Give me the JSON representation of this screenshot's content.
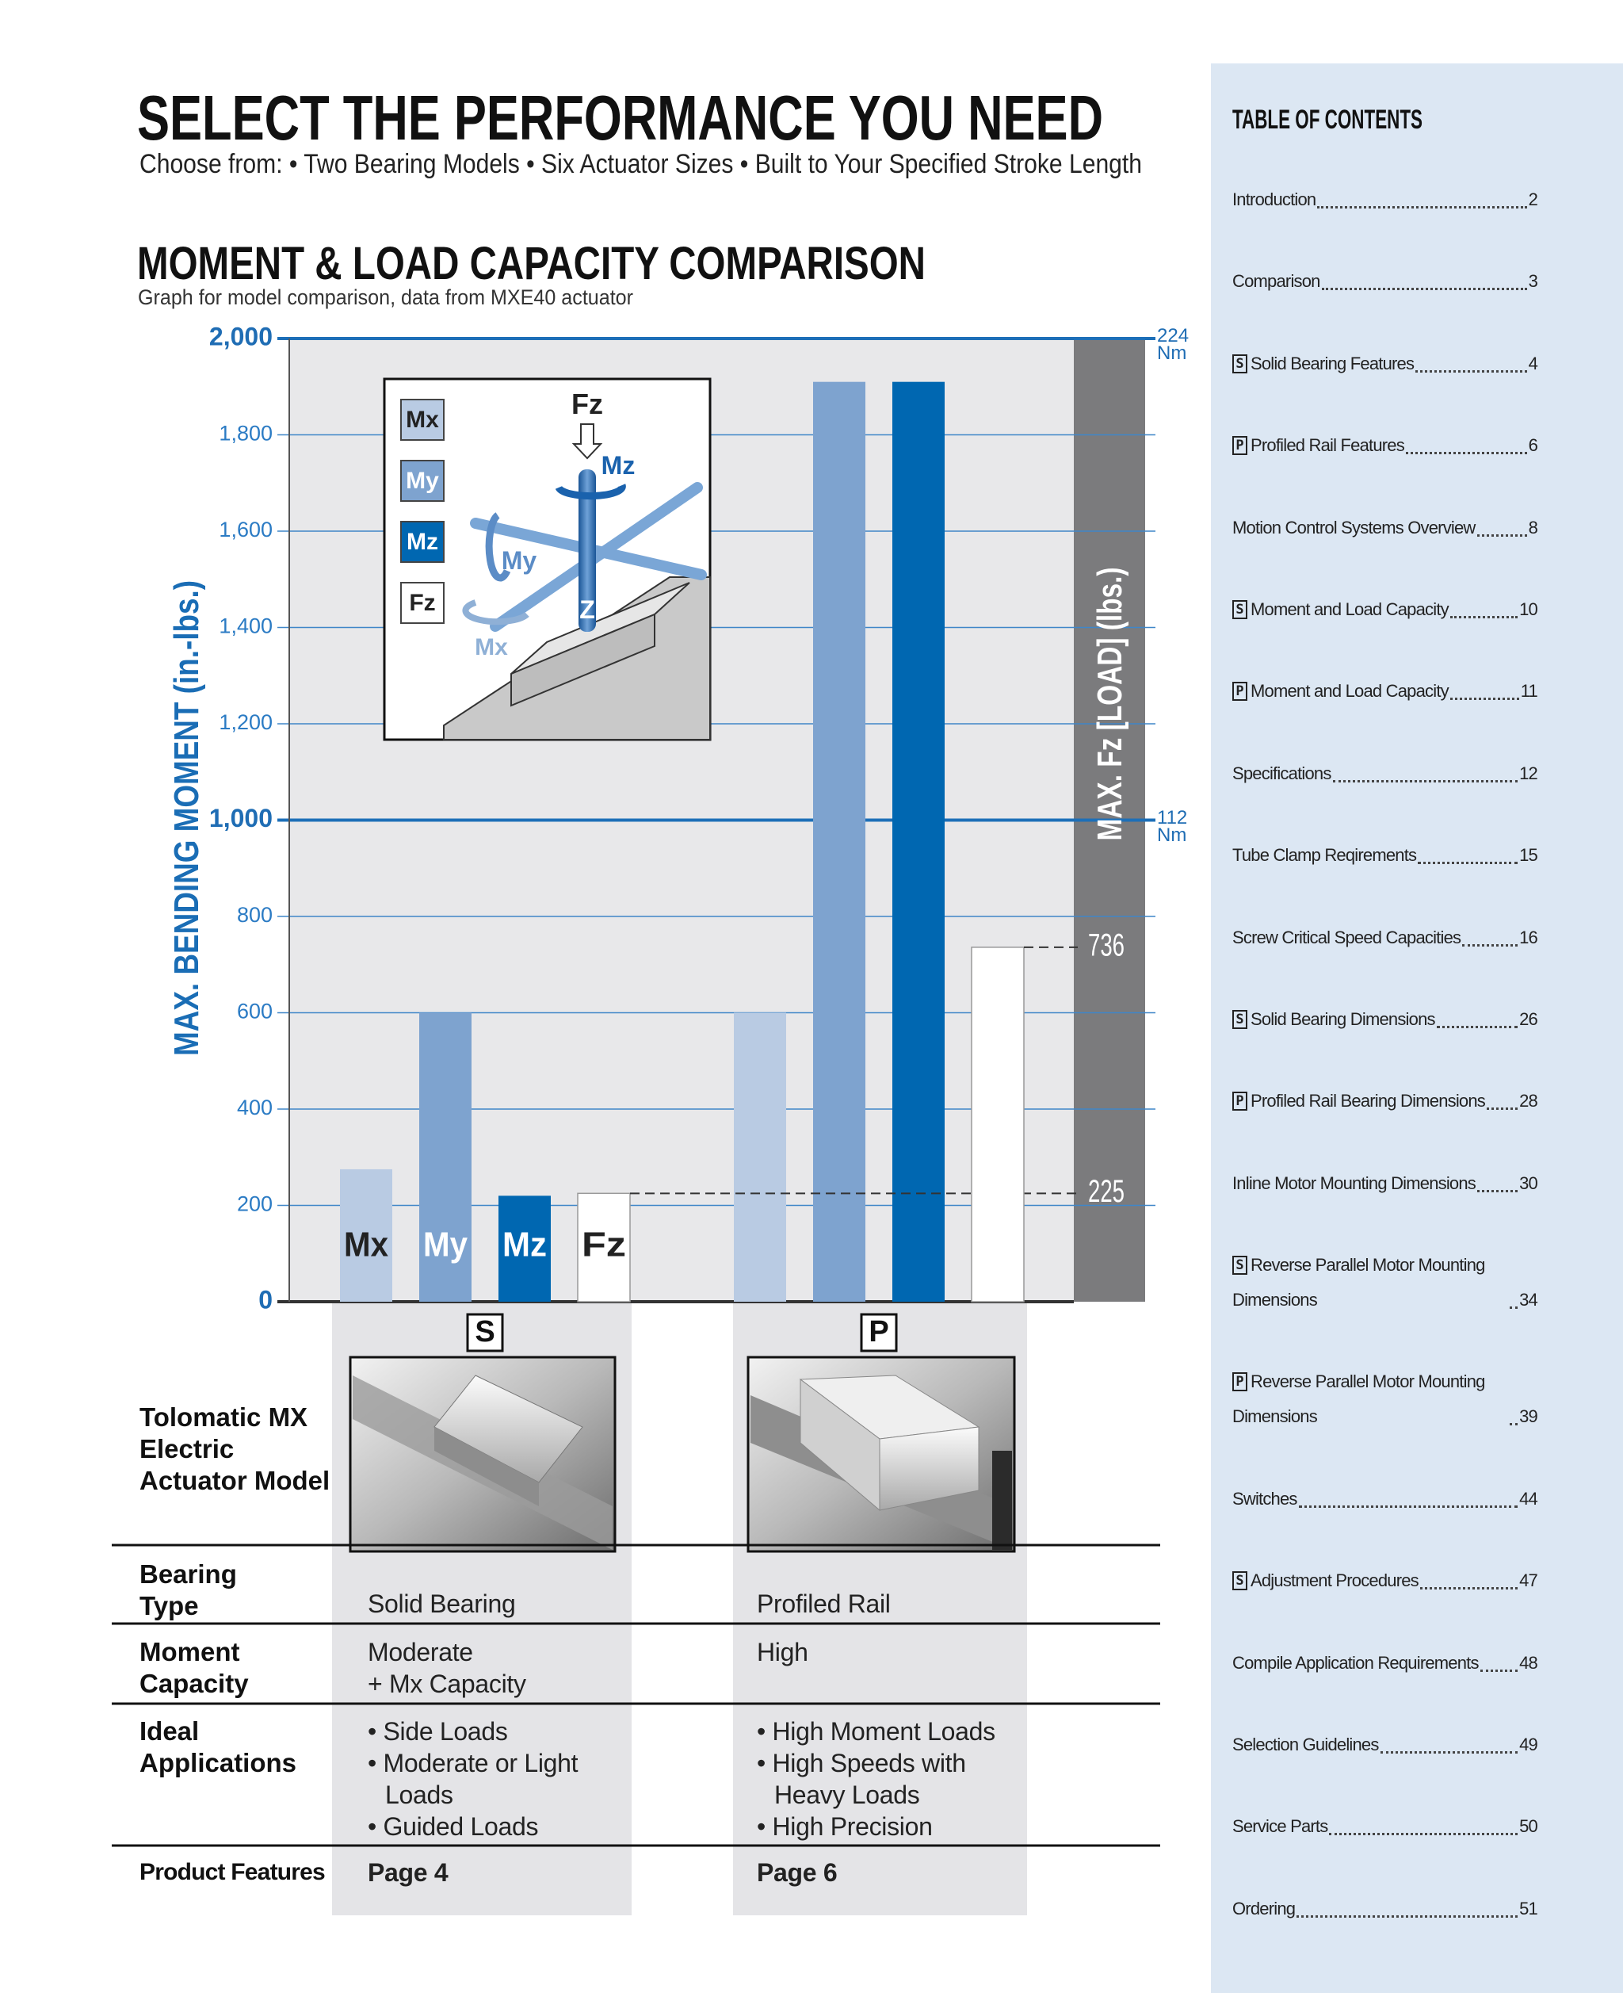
{
  "header": {
    "title": "SELECT THE PERFORMANCE YOU NEED",
    "subtitle": "Choose from: • Two Bearing Models  • Six Actuator Sizes • Built to Your Specified Stroke Length"
  },
  "chart_data": {
    "type": "bar",
    "title": "MOMENT & LOAD CAPACITY COMPARISON",
    "subtitle": "Graph for model comparison, data from MXE40 actuator",
    "ylabel": "MAX. BENDING MOMENT (in.-lbs.)",
    "band_label": "MAX. Fz [LOAD] (lbs.)",
    "categories": [
      "S",
      "P"
    ],
    "series": [
      {
        "name": "Mx",
        "color": "#b9cbe3",
        "values": [
          275,
          600
        ]
      },
      {
        "name": "My",
        "color": "#7ea3cf",
        "values": [
          600,
          1910
        ]
      },
      {
        "name": "Mz",
        "color": "#0067b1",
        "values": [
          220,
          1910
        ]
      },
      {
        "name": "Fz",
        "color": "#ffffff",
        "values": [
          225,
          736
        ],
        "data_labels": true
      }
    ],
    "ylim": [
      0,
      2000
    ],
    "yticks": [
      0,
      200,
      400,
      600,
      800,
      {
        "value": 1000,
        "label": "1,000"
      },
      {
        "value": 1200,
        "label": "1,200"
      },
      {
        "value": 1400,
        "label": "1,400"
      },
      {
        "value": 1600,
        "label": "1,600"
      },
      {
        "value": 1800,
        "label": "1,800"
      },
      {
        "value": 2000,
        "label": "2,000"
      }
    ],
    "y2lim": [
      0,
      224
    ],
    "y2ticks": [
      {
        "value": 112,
        "label": "112 Nm"
      },
      {
        "value": 224,
        "label": "224 Nm"
      }
    ],
    "grid": true,
    "diagram": {
      "labels": [
        "Fz",
        "Mz",
        "My",
        "Mx",
        "Z"
      ]
    }
  },
  "table": {
    "header_label": "Tolomatic MX Electric Actuator Model",
    "rows": [
      {
        "label": "Bearing Type",
        "cells": [
          "Solid Bearing",
          "Profiled Rail"
        ]
      },
      {
        "label": "Moment Capacity",
        "cells": [
          [
            "Moderate",
            "+ Mx Capacity"
          ],
          "High"
        ]
      },
      {
        "label": "Ideal Applications",
        "cells": [
          [
            "• Side Loads",
            "• Moderate or Light Loads",
            "• Guided Loads"
          ],
          [
            "• High Moment Loads",
            "• High Speeds with Heavy Loads",
            "• High Precision"
          ]
        ]
      },
      {
        "label": "Product Features",
        "cells": [
          "Page 4",
          "Page 6"
        ]
      }
    ]
  },
  "toc": {
    "title": "TABLE OF CONTENTS",
    "entries": [
      {
        "label": "Introduction",
        "page": 2
      },
      {
        "label": "Comparison",
        "page": 3
      },
      {
        "icon": "S",
        "label": "Solid Bearing Features",
        "page": 4
      },
      {
        "icon": "P",
        "label": "Profiled Rail Features",
        "page": 6
      },
      {
        "label": "Motion Control Systems Overview",
        "page": 8
      },
      {
        "icon": "S",
        "label": "Moment and Load Capacity",
        "page": 10
      },
      {
        "icon": "P",
        "label": "Moment and Load Capacity",
        "page": 11
      },
      {
        "label": "Specifications",
        "page": 12
      },
      {
        "label": "Tube Clamp Reqirements",
        "page": 15
      },
      {
        "label": "Screw Critical Speed Capacities",
        "page": 16
      },
      {
        "icon": "S",
        "label": "Solid Bearing Dimensions",
        "page": 26
      },
      {
        "icon": "P",
        "label": "Profiled Rail Bearing Dimensions",
        "page": 28
      },
      {
        "label": "Inline Motor Mounting Dimensions",
        "page": 30
      },
      {
        "icon": "S",
        "label": "Reverse Parallel Motor Mounting Dimensions",
        "page": 34
      },
      {
        "icon": "P",
        "label": "Reverse Parallel Motor Mounting Dimensions",
        "page": 39
      },
      {
        "label": "Switches",
        "page": 44
      },
      {
        "icon": "S",
        "label": "Adjustment Procedures",
        "page": 47
      },
      {
        "label": "Compile Application Requirements",
        "page": 48
      },
      {
        "label": "Selection Guidelines",
        "page": 49
      },
      {
        "label": "Service Parts",
        "page": 50
      },
      {
        "label": "Ordering",
        "page": 51
      }
    ]
  }
}
